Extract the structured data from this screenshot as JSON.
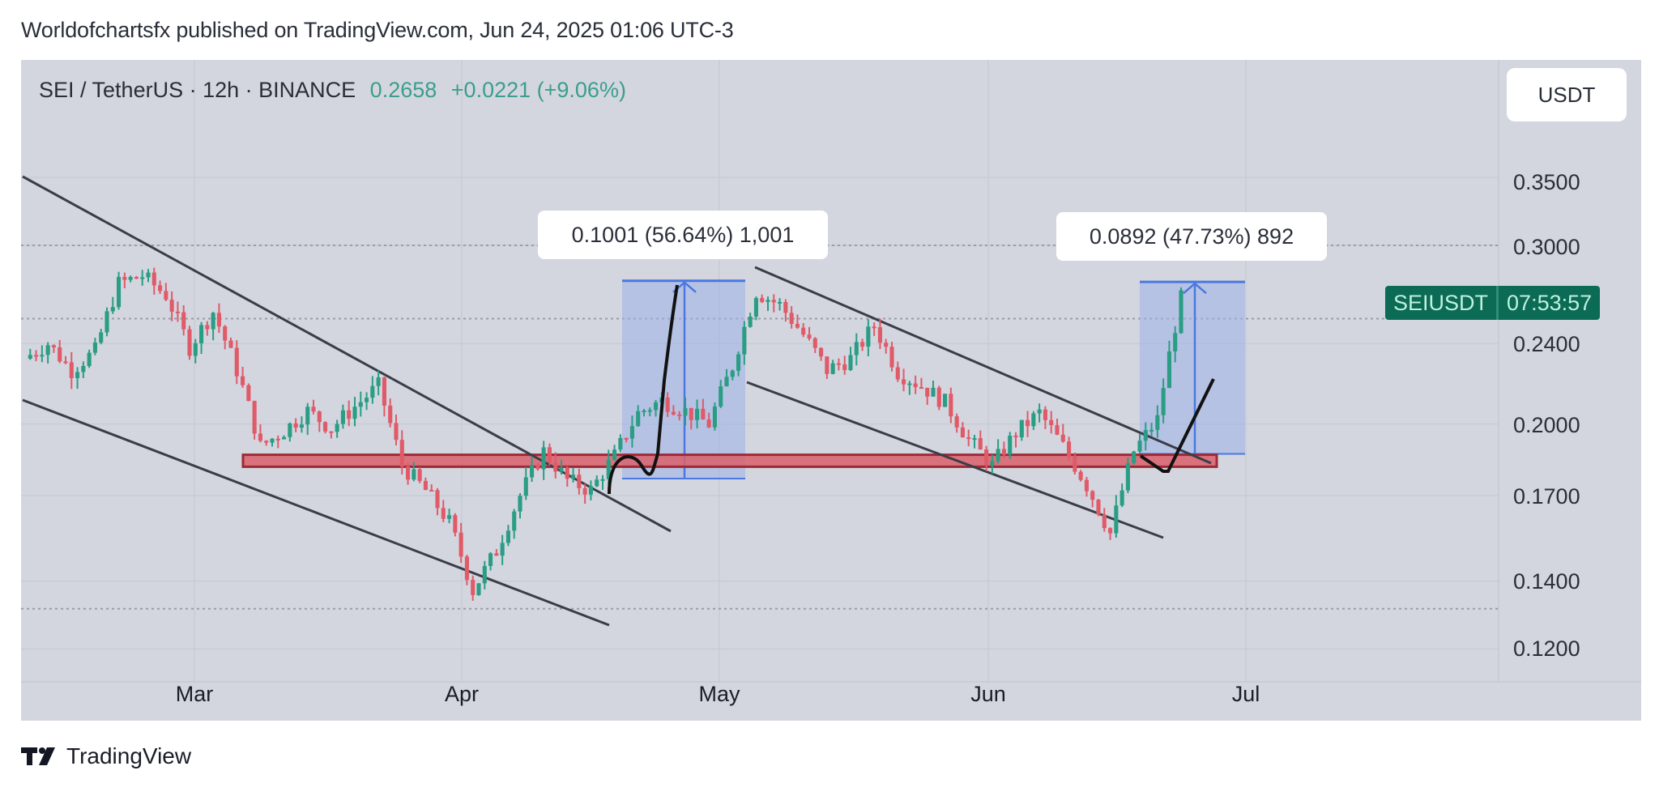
{
  "header": {
    "published_text": "Worldofchartsfx published on TradingView.com, Jun 24, 2025 01:06 UTC-3"
  },
  "symbol": {
    "pair": "SEI / TetherUS · 12h · BINANCE",
    "last_price": "0.2658",
    "change": "+0.0221 (+9.06%)",
    "currency_button": "USDT",
    "badge_symbol": "SEIUSDT",
    "badge_countdown": "07:53:57"
  },
  "colors": {
    "background": "#d3d6df",
    "up_candle": "#2a9d84",
    "down_candle": "#e05a68",
    "price_green": "#3a9e8c",
    "support_zone": "#d9606c",
    "measure_box": "#9fb3e6",
    "measure_line": "#4a78e0",
    "trendline": "#3a3d47",
    "badge_bg": "#0b6b55"
  },
  "axes": {
    "y_ticks": [
      "0.3500",
      "0.3000",
      "0.2400",
      "0.2000",
      "0.1700",
      "0.1400",
      "0.1200"
    ],
    "x_ticks": [
      "Mar",
      "Apr",
      "May",
      "Jun",
      "Jul"
    ]
  },
  "annotations": {
    "measure_1": "0.1001 (56.64%) 1,001",
    "measure_2": "0.0892 (47.73%) 892"
  },
  "footer": {
    "brand": "TradingView"
  },
  "chart_data": {
    "type": "candlestick",
    "title": "SEI / TetherUS · 12h · BINANCE",
    "xlabel": "",
    "ylabel": "USDT",
    "y_scale": "log",
    "ylim": [
      0.11,
      0.4
    ],
    "x_ticks": [
      "Mar",
      "Apr",
      "May",
      "Jun",
      "Jul"
    ],
    "y_ticks": [
      0.35,
      0.3,
      0.24,
      0.2,
      0.17,
      0.14,
      0.12
    ],
    "last_price": 0.2658,
    "change_abs": 0.0221,
    "change_pct": 9.06,
    "approx_close_path": {
      "dates": [
        "Feb 14",
        "Feb 18",
        "Feb 20",
        "Feb 24",
        "Feb 27",
        "Mar 1",
        "Mar 4",
        "Mar 7",
        "Mar 10",
        "Mar 12",
        "Mar 15",
        "Mar 18",
        "Mar 21",
        "Mar 24",
        "Mar 27",
        "Mar 29",
        "Apr 1",
        "Apr 3",
        "Apr 5",
        "Apr 7",
        "Apr 9",
        "Apr 11",
        "Apr 13",
        "Apr 15",
        "Apr 18",
        "Apr 21",
        "Apr 23",
        "Apr 25",
        "Apr 28",
        "May 1",
        "May 4",
        "May 6",
        "May 9",
        "May 12",
        "May 15",
        "May 18",
        "May 21",
        "May 24",
        "May 27",
        "May 30",
        "Jun 2",
        "Jun 5",
        "Jun 8",
        "Jun 11",
        "Jun 13",
        "Jun 16",
        "Jun 18",
        "Jun 20",
        "Jun 22",
        "Jun 24"
      ],
      "close": [
        0.232,
        0.24,
        0.226,
        0.236,
        0.275,
        0.28,
        0.268,
        0.238,
        0.258,
        0.226,
        0.19,
        0.197,
        0.206,
        0.198,
        0.208,
        0.218,
        0.182,
        0.172,
        0.16,
        0.137,
        0.15,
        0.17,
        0.188,
        0.176,
        0.172,
        0.186,
        0.205,
        0.211,
        0.206,
        0.2,
        0.228,
        0.27,
        0.262,
        0.245,
        0.226,
        0.232,
        0.25,
        0.225,
        0.218,
        0.21,
        0.193,
        0.182,
        0.196,
        0.205,
        0.19,
        0.174,
        0.156,
        0.188,
        0.202,
        0.2658
      ]
    },
    "drawings": {
      "support_zone": {
        "price_low": 0.182,
        "price_high": 0.186,
        "from": "Mar 8",
        "to": "Jun 24"
      },
      "measure_1": {
        "label": "0.1001 (56.64%) 1,001",
        "from_price": 0.1767,
        "to_price": 0.2768
      },
      "measure_2": {
        "label": "0.0892 (47.73%) 892",
        "from_price": 0.1869,
        "to_price": 0.2761
      },
      "descending_channel_1": "Feb–Apr (upper + lower trendlines)",
      "descending_channel_2": "May–Jun (upper + lower trendlines)",
      "projected_paths": [
        "retest then sharp rally (Apr)",
        "V-shaped retest then rally (late Jun)"
      ]
    }
  }
}
